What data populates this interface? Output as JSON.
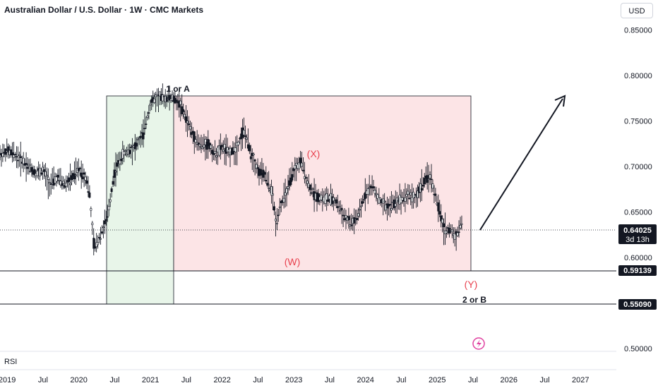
{
  "header": {
    "title": "Australian Dollar / U.S. Dollar · 1W · CMC Markets",
    "currency": "USD"
  },
  "colors": {
    "green_zone": "#e8f5e9",
    "red_zone": "#fce4e6",
    "wave_red": "#e8424f",
    "candles": "#131722",
    "price_tag": "#131722"
  },
  "indicator": {
    "label": "RSI"
  },
  "current_price": {
    "value": "0.64025",
    "countdown": "3d 13h"
  },
  "levels": [
    {
      "value": "0.59139"
    },
    {
      "value": "0.55090"
    }
  ],
  "annotations": {
    "top": "1 or A",
    "bottom": "2 or B",
    "w": "(W)",
    "x": "(X)",
    "y": "(Y)"
  },
  "chart_data": {
    "type": "line",
    "title": "Australian Dollar / U.S. Dollar · 1W · CMC Markets",
    "xlabel": "",
    "ylabel": "",
    "xlim": [
      2018.9,
      2027.5
    ],
    "ylim": [
      0.497,
      0.883
    ],
    "x_ticks": [
      {
        "x": 2019.0,
        "label": "2019"
      },
      {
        "x": 2019.5,
        "label": "Jul"
      },
      {
        "x": 2020.0,
        "label": "2020"
      },
      {
        "x": 2020.5,
        "label": "Jul"
      },
      {
        "x": 2021.0,
        "label": "2021"
      },
      {
        "x": 2021.5,
        "label": "Jul"
      },
      {
        "x": 2022.0,
        "label": "2022"
      },
      {
        "x": 2022.5,
        "label": "Jul"
      },
      {
        "x": 2023.0,
        "label": "2023"
      },
      {
        "x": 2023.5,
        "label": "Jul"
      },
      {
        "x": 2024.0,
        "label": "2024"
      },
      {
        "x": 2024.5,
        "label": "Jul"
      },
      {
        "x": 2025.0,
        "label": "2025"
      },
      {
        "x": 2025.5,
        "label": "Jul"
      },
      {
        "x": 2026.0,
        "label": "2026"
      },
      {
        "x": 2026.5,
        "label": "Jul"
      },
      {
        "x": 2027.0,
        "label": "2027"
      }
    ],
    "y_ticks": [
      "0.50000",
      "0.55000",
      "0.60000",
      "0.65000",
      "0.70000",
      "0.75000",
      "0.80000",
      "0.85000"
    ],
    "y_tick_values": [
      0.5,
      0.55,
      0.6,
      0.65,
      0.7,
      0.75,
      0.8,
      0.85
    ],
    "series": [
      {
        "x": [
          2018.9,
          2019.0,
          2019.1,
          2019.2,
          2019.3,
          2019.4,
          2019.5,
          2019.6,
          2019.7,
          2019.8,
          2019.9,
          2020.0,
          2020.1,
          2020.15,
          2020.2,
          2020.22,
          2020.3,
          2020.4,
          2020.5,
          2020.6,
          2020.7,
          2020.8,
          2020.9,
          2021.0,
          2021.1,
          2021.2,
          2021.3,
          2021.4,
          2021.5,
          2021.6,
          2021.7,
          2021.8,
          2021.9,
          2022.0,
          2022.1,
          2022.2,
          2022.3,
          2022.4,
          2022.5,
          2022.6,
          2022.7,
          2022.75,
          2022.8,
          2022.9,
          2023.0,
          2023.1,
          2023.2,
          2023.3,
          2023.4,
          2023.5,
          2023.6,
          2023.7,
          2023.8,
          2023.9,
          2024.0,
          2024.1,
          2024.2,
          2024.3,
          2024.4,
          2024.5,
          2024.6,
          2024.7,
          2024.8,
          2024.9,
          2025.0,
          2025.1,
          2025.2,
          2025.25,
          2025.3,
          2025.35
        ],
        "values": [
          0.713,
          0.717,
          0.713,
          0.707,
          0.7,
          0.693,
          0.695,
          0.68,
          0.688,
          0.68,
          0.687,
          0.697,
          0.688,
          0.67,
          0.62,
          0.61,
          0.625,
          0.645,
          0.695,
          0.712,
          0.718,
          0.723,
          0.736,
          0.77,
          0.776,
          0.775,
          0.775,
          0.77,
          0.752,
          0.733,
          0.723,
          0.725,
          0.713,
          0.721,
          0.715,
          0.72,
          0.74,
          0.715,
          0.695,
          0.69,
          0.67,
          0.637,
          0.655,
          0.672,
          0.695,
          0.706,
          0.68,
          0.668,
          0.665,
          0.665,
          0.66,
          0.645,
          0.637,
          0.645,
          0.672,
          0.678,
          0.662,
          0.655,
          0.66,
          0.665,
          0.67,
          0.665,
          0.682,
          0.69,
          0.66,
          0.63,
          0.63,
          0.622,
          0.63,
          0.642
        ]
      }
    ]
  }
}
